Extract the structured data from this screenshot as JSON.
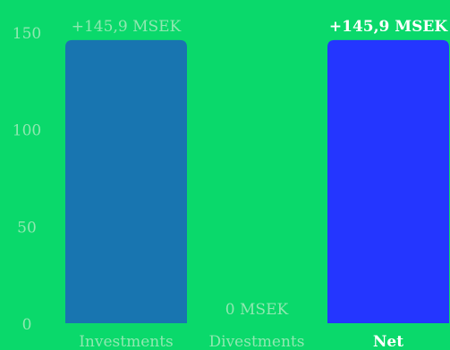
{
  "background": "#0AD96B",
  "label_color_muted": "#8FE8B0",
  "label_color_bright": "#FFFFFF",
  "chart_data": {
    "type": "bar",
    "title": "",
    "xlabel": "",
    "ylabel": "",
    "ylim": [
      0,
      150
    ],
    "yticks": [
      0,
      50,
      100,
      150
    ],
    "ytick_labels": [
      "0",
      "50",
      "100",
      "150"
    ],
    "grid": false,
    "legend": "none",
    "categories": [
      "Investments",
      "Divestments",
      "Net"
    ],
    "values": [
      145.9,
      0,
      145.9
    ],
    "data_labels": [
      "+145,9 MSEK",
      "0 MSEK",
      "+145,9 MSEK"
    ],
    "bar_colors": [
      "#1875B0",
      "#1E7EBA",
      "#2436FF"
    ],
    "emphasized": [
      false,
      false,
      true
    ]
  }
}
